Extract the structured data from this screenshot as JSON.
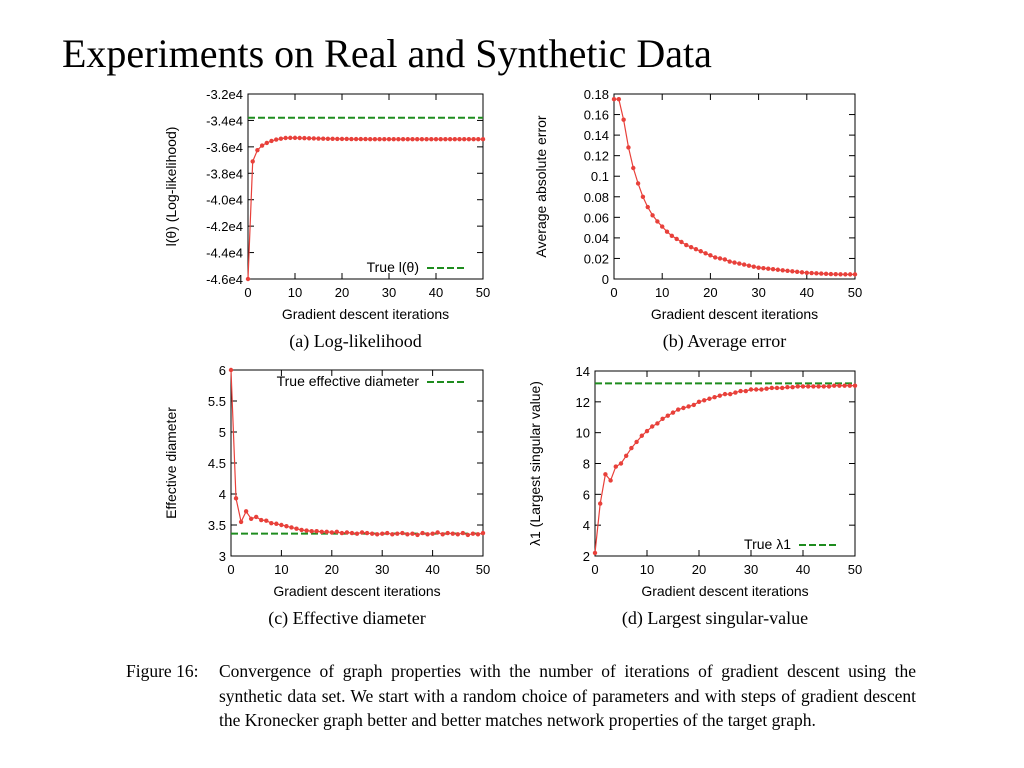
{
  "slide": {
    "title": "Experiments on Real and Synthetic Data"
  },
  "caption": {
    "label": "Figure 16:",
    "text": "Convergence of graph properties with the number of iterations of gradient descent using the synthetic data set. We start with a random choice of parameters and with steps of gradient descent the Kronecker graph better and better matches network properties of the target graph."
  },
  "colors": {
    "series": "#e8403a",
    "true_line": "#1e8c1e"
  },
  "chart_data": [
    {
      "id": "a",
      "type": "line",
      "subcaption": "(a) Log-likelihood",
      "xlabel": "Gradient descent iterations",
      "ylabel": "l(θ) (Log-likelihood)",
      "xlim": [
        0,
        50
      ],
      "ylim": [
        -46000,
        -32000
      ],
      "xticks": [
        0,
        10,
        20,
        30,
        40,
        50
      ],
      "xtick_labels": [
        "0",
        "10",
        "20",
        "30",
        "40",
        "50"
      ],
      "yticks": [
        -46000,
        -44000,
        -42000,
        -40000,
        -38000,
        -36000,
        -34000,
        -32000
      ],
      "ytick_labels": [
        "-4.6e4",
        "-4.4e4",
        "-4.2e4",
        "-4.0e4",
        "-3.8e4",
        "-3.6e4",
        "-3.4e4",
        "-3.2e4"
      ],
      "grid": false,
      "legend_position": "bottom-right",
      "reference": {
        "name": "True l(θ)",
        "value": -33800
      },
      "series": [
        {
          "x": [
            0,
            1,
            2,
            3,
            4,
            5,
            6,
            7,
            8,
            9,
            10,
            11,
            12,
            13,
            14,
            15,
            16,
            17,
            18,
            19,
            20,
            21,
            22,
            23,
            24,
            25,
            26,
            27,
            28,
            29,
            30,
            31,
            32,
            33,
            34,
            35,
            36,
            37,
            38,
            39,
            40,
            41,
            42,
            43,
            44,
            45,
            46,
            47,
            48,
            49,
            50
          ],
          "values": [
            -46000,
            -37100,
            -36250,
            -35900,
            -35700,
            -35550,
            -35450,
            -35380,
            -35330,
            -35320,
            -35320,
            -35330,
            -35340,
            -35350,
            -35360,
            -35370,
            -35380,
            -35390,
            -35390,
            -35400,
            -35400,
            -35400,
            -35410,
            -35410,
            -35410,
            -35410,
            -35420,
            -35420,
            -35420,
            -35420,
            -35420,
            -35420,
            -35420,
            -35420,
            -35420,
            -35420,
            -35420,
            -35420,
            -35420,
            -35420,
            -35420,
            -35420,
            -35420,
            -35420,
            -35420,
            -35420,
            -35420,
            -35420,
            -35420,
            -35420,
            -35420
          ]
        }
      ]
    },
    {
      "id": "b",
      "type": "line",
      "subcaption": "(b) Average error",
      "xlabel": "Gradient descent iterations",
      "ylabel": "Average absolute error",
      "xlim": [
        0,
        50
      ],
      "ylim": [
        0,
        0.18
      ],
      "xticks": [
        0,
        10,
        20,
        30,
        40,
        50
      ],
      "xtick_labels": [
        "0",
        "10",
        "20",
        "30",
        "40",
        "50"
      ],
      "yticks": [
        0,
        0.02,
        0.04,
        0.06,
        0.08,
        0.1,
        0.12,
        0.14,
        0.16,
        0.18
      ],
      "ytick_labels": [
        "0",
        "0.02",
        "0.04",
        "0.06",
        "0.08",
        "0.1",
        "0.12",
        "0.14",
        "0.16",
        "0.18"
      ],
      "grid": false,
      "reference": null,
      "series": [
        {
          "x": [
            0,
            1,
            2,
            3,
            4,
            5,
            6,
            7,
            8,
            9,
            10,
            11,
            12,
            13,
            14,
            15,
            16,
            17,
            18,
            19,
            20,
            21,
            22,
            23,
            24,
            25,
            26,
            27,
            28,
            29,
            30,
            31,
            32,
            33,
            34,
            35,
            36,
            37,
            38,
            39,
            40,
            41,
            42,
            43,
            44,
            45,
            46,
            47,
            48,
            49,
            50
          ],
          "values": [
            0.175,
            0.175,
            0.155,
            0.128,
            0.108,
            0.093,
            0.08,
            0.07,
            0.062,
            0.056,
            0.051,
            0.046,
            0.042,
            0.039,
            0.036,
            0.033,
            0.031,
            0.029,
            0.027,
            0.025,
            0.023,
            0.021,
            0.02,
            0.019,
            0.017,
            0.016,
            0.015,
            0.014,
            0.013,
            0.012,
            0.011,
            0.0105,
            0.01,
            0.0095,
            0.009,
            0.0085,
            0.008,
            0.0075,
            0.007,
            0.0065,
            0.006,
            0.0058,
            0.0055,
            0.0053,
            0.005,
            0.0048,
            0.0047,
            0.0046,
            0.0045,
            0.0045,
            0.0045
          ]
        }
      ]
    },
    {
      "id": "c",
      "type": "line",
      "subcaption": "(c) Effective diameter",
      "xlabel": "Gradient descent iterations",
      "ylabel": "Effective diameter",
      "xlim": [
        0,
        50
      ],
      "ylim": [
        3,
        6
      ],
      "xticks": [
        0,
        10,
        20,
        30,
        40,
        50
      ],
      "xtick_labels": [
        "0",
        "10",
        "20",
        "30",
        "40",
        "50"
      ],
      "yticks": [
        3,
        3.5,
        4,
        4.5,
        5,
        5.5,
        6
      ],
      "ytick_labels": [
        "3",
        "3.5",
        "4",
        "4.5",
        "5",
        "5.5",
        "6"
      ],
      "grid": false,
      "legend_position": "top-right",
      "reference": {
        "name": "True effective diameter",
        "value": 3.36
      },
      "series": [
        {
          "x": [
            0,
            1,
            2,
            3,
            4,
            5,
            6,
            7,
            8,
            9,
            10,
            11,
            12,
            13,
            14,
            15,
            16,
            17,
            18,
            19,
            20,
            21,
            22,
            23,
            24,
            25,
            26,
            27,
            28,
            29,
            30,
            31,
            32,
            33,
            34,
            35,
            36,
            37,
            38,
            39,
            40,
            41,
            42,
            43,
            44,
            45,
            46,
            47,
            48,
            49,
            50
          ],
          "values": [
            6.0,
            3.93,
            3.55,
            3.72,
            3.6,
            3.63,
            3.58,
            3.57,
            3.53,
            3.52,
            3.5,
            3.48,
            3.46,
            3.44,
            3.42,
            3.41,
            3.4,
            3.4,
            3.39,
            3.39,
            3.38,
            3.39,
            3.37,
            3.38,
            3.37,
            3.36,
            3.38,
            3.37,
            3.36,
            3.35,
            3.36,
            3.37,
            3.35,
            3.36,
            3.37,
            3.35,
            3.36,
            3.34,
            3.37,
            3.35,
            3.36,
            3.38,
            3.35,
            3.37,
            3.36,
            3.35,
            3.37,
            3.34,
            3.36,
            3.35,
            3.37
          ]
        }
      ]
    },
    {
      "id": "d",
      "type": "line",
      "subcaption": "(d) Largest singular-value",
      "xlabel": "Gradient descent iterations",
      "ylabel": "λ1 (Largest singular value)",
      "xlim": [
        0,
        50
      ],
      "ylim": [
        2,
        14
      ],
      "xticks": [
        0,
        10,
        20,
        30,
        40,
        50
      ],
      "xtick_labels": [
        "0",
        "10",
        "20",
        "30",
        "40",
        "50"
      ],
      "yticks": [
        2,
        4,
        6,
        8,
        10,
        12,
        14
      ],
      "ytick_labels": [
        "2",
        "4",
        "6",
        "8",
        "10",
        "12",
        "14"
      ],
      "grid": false,
      "legend_position": "bottom-right",
      "reference": {
        "name": "True λ1",
        "value": 13.2
      },
      "series": [
        {
          "x": [
            0,
            1,
            2,
            3,
            4,
            5,
            6,
            7,
            8,
            9,
            10,
            11,
            12,
            13,
            14,
            15,
            16,
            17,
            18,
            19,
            20,
            21,
            22,
            23,
            24,
            25,
            26,
            27,
            28,
            29,
            30,
            31,
            32,
            33,
            34,
            35,
            36,
            37,
            38,
            39,
            40,
            41,
            42,
            43,
            44,
            45,
            46,
            47,
            48,
            49,
            50
          ],
          "values": [
            2.2,
            5.4,
            7.3,
            6.9,
            7.8,
            8.0,
            8.5,
            9.0,
            9.4,
            9.8,
            10.1,
            10.4,
            10.6,
            10.9,
            11.1,
            11.3,
            11.5,
            11.6,
            11.7,
            11.8,
            12.0,
            12.1,
            12.2,
            12.3,
            12.4,
            12.5,
            12.5,
            12.6,
            12.7,
            12.7,
            12.8,
            12.8,
            12.8,
            12.85,
            12.9,
            12.9,
            12.9,
            12.95,
            12.95,
            13.0,
            13.0,
            13.0,
            13.0,
            13.0,
            13.0,
            13.0,
            13.05,
            13.05,
            13.05,
            13.05,
            13.05
          ]
        }
      ]
    }
  ]
}
